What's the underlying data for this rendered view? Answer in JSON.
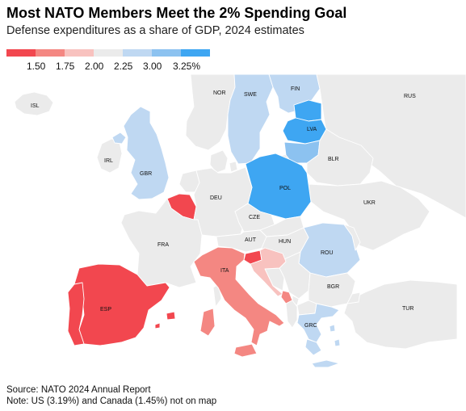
{
  "header": {
    "title": "Most NATO Members Meet the 2% Spending Goal",
    "subtitle": "Defense expenditures as a share of GDP, 2024 estimates"
  },
  "legend": {
    "colors": [
      "#f2474f",
      "#f48782",
      "#f8c2bf",
      "#ebebeb",
      "#bfd8f2",
      "#8cc2f0",
      "#3ea6f2"
    ],
    "ticks": [
      "1.50",
      "1.75",
      "2.00",
      "2.25",
      "3.00",
      "3.25%"
    ]
  },
  "map": {
    "countries": [
      {
        "code": "ISL",
        "label": "ISL",
        "class": "none"
      },
      {
        "code": "IRL",
        "label": "IRL",
        "class": "none"
      },
      {
        "code": "GBR",
        "label": "GBR",
        "class": "c4"
      },
      {
        "code": "NOR",
        "label": "NOR",
        "class": "c3"
      },
      {
        "code": "SWE",
        "label": "SWE",
        "class": "c4"
      },
      {
        "code": "FIN",
        "label": "FIN",
        "class": "c4"
      },
      {
        "code": "EST",
        "label": "",
        "class": "c6"
      },
      {
        "code": "LVA",
        "label": "LVA",
        "class": "c6"
      },
      {
        "code": "LTU",
        "label": "",
        "class": "c5"
      },
      {
        "code": "BLR",
        "label": "BLR",
        "class": "none"
      },
      {
        "code": "RUS",
        "label": "RUS",
        "class": "none"
      },
      {
        "code": "UKR",
        "label": "UKR",
        "class": "none"
      },
      {
        "code": "POL",
        "label": "POL",
        "class": "c6"
      },
      {
        "code": "DEU",
        "label": "DEU",
        "class": "c3"
      },
      {
        "code": "BEL",
        "label": "",
        "class": "c0"
      },
      {
        "code": "NLD",
        "label": "",
        "class": "c3"
      },
      {
        "code": "DNK",
        "label": "",
        "class": "c3"
      },
      {
        "code": "FRA",
        "label": "FRA",
        "class": "c3"
      },
      {
        "code": "CZE",
        "label": "CZE",
        "class": "c3"
      },
      {
        "code": "AUT",
        "label": "AUT",
        "class": "none"
      },
      {
        "code": "HUN",
        "label": "HUN",
        "class": "c3"
      },
      {
        "code": "SVK",
        "label": "",
        "class": "c3"
      },
      {
        "code": "ROU",
        "label": "ROU",
        "class": "c4"
      },
      {
        "code": "BGR",
        "label": "BGR",
        "class": "c3"
      },
      {
        "code": "SVN",
        "label": "",
        "class": "c0"
      },
      {
        "code": "HRV",
        "label": "",
        "class": "c2"
      },
      {
        "code": "ITA",
        "label": "ITA",
        "class": "c1"
      },
      {
        "code": "ESP",
        "label": "ESP",
        "class": "c0"
      },
      {
        "code": "PRT",
        "label": "",
        "class": "c0"
      },
      {
        "code": "GRC",
        "label": "GRC",
        "class": "c4"
      },
      {
        "code": "TUR",
        "label": "TUR",
        "class": "c3"
      },
      {
        "code": "MNE",
        "label": "",
        "class": "c1"
      },
      {
        "code": "ALB",
        "label": "",
        "class": "c3"
      },
      {
        "code": "MKD",
        "label": "",
        "class": "c3"
      },
      {
        "code": "SRB",
        "label": "",
        "class": "none"
      }
    ]
  },
  "footer": {
    "source": "Source: NATO 2024 Annual Report",
    "note": "Note: US (3.19%) and Canada (1.45%) not on map"
  }
}
